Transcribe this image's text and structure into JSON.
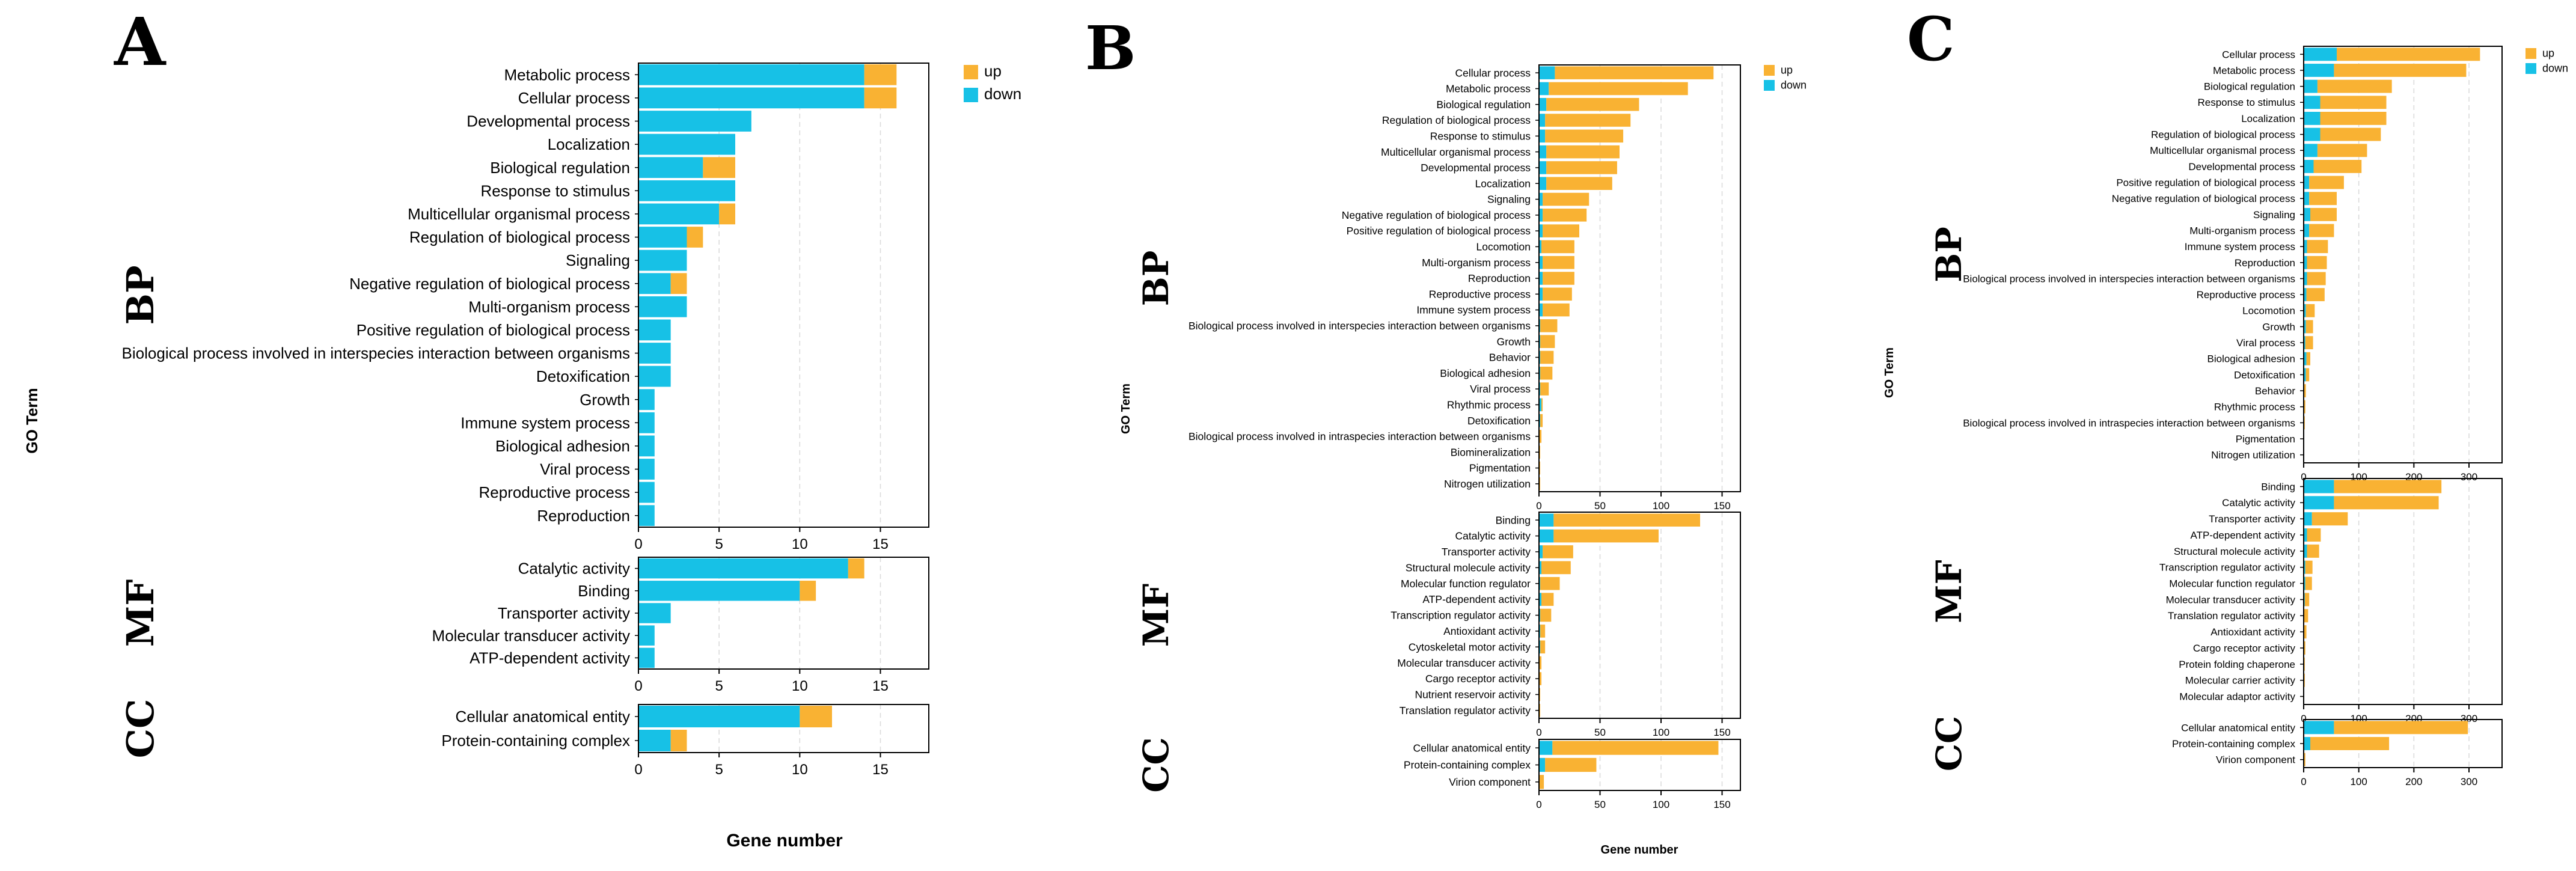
{
  "colors": {
    "up": "#F9B233",
    "down": "#17C1E6",
    "grid": "#d9d9d9",
    "axis": "#000000"
  },
  "chart_data": [
    {
      "type": "bar",
      "panel_label": "A",
      "stacked": true,
      "orientation": "horizontal",
      "y_axis_title": "GO Term",
      "x_axis_title": "Gene number",
      "legend": {
        "position": "top-right",
        "entries": [
          "up",
          "down"
        ]
      },
      "xlim": [
        0,
        18
      ],
      "x_ticks": [
        "0",
        "5",
        "10",
        "15"
      ],
      "sections": [
        {
          "name": "BP",
          "categories": [
            "Metabolic process",
            "Cellular process",
            "Developmental process",
            "Localization",
            "Biological regulation",
            "Response to stimulus",
            "Multicellular organismal process",
            "Regulation of biological process",
            "Signaling",
            "Negative regulation of biological process",
            "Multi-organism process",
            "Positive regulation of biological process",
            "Biological process involved in interspecies interaction between organisms",
            "Detoxification",
            "Growth",
            "Immune system process",
            "Biological adhesion",
            "Viral process",
            "Reproductive process",
            "Reproduction"
          ],
          "series": [
            {
              "name": "down",
              "values": [
                14,
                14,
                7,
                6,
                4,
                6,
                5,
                3,
                3,
                2,
                3,
                2,
                2,
                2,
                1,
                1,
                1,
                1,
                1,
                1
              ]
            },
            {
              "name": "up",
              "values": [
                2,
                2,
                0,
                0,
                2,
                0,
                1,
                1,
                0,
                1,
                0,
                0,
                0,
                0,
                0,
                0,
                0,
                0,
                0,
                0
              ]
            }
          ]
        },
        {
          "name": "MF",
          "categories": [
            "Catalytic activity",
            "Binding",
            "Transporter activity",
            "Molecular transducer activity",
            "ATP-dependent activity"
          ],
          "series": [
            {
              "name": "down",
              "values": [
                13,
                10,
                2,
                1,
                1
              ]
            },
            {
              "name": "up",
              "values": [
                1,
                1,
                0,
                0,
                0
              ]
            }
          ]
        },
        {
          "name": "CC",
          "categories": [
            "Cellular anatomical entity",
            "Protein-containing complex"
          ],
          "series": [
            {
              "name": "down",
              "values": [
                10,
                2
              ]
            },
            {
              "name": "up",
              "values": [
                2,
                1
              ]
            }
          ]
        }
      ]
    },
    {
      "type": "bar",
      "panel_label": "B",
      "stacked": true,
      "orientation": "horizontal",
      "y_axis_title": "GO Term",
      "x_axis_title": "Gene number",
      "legend": {
        "position": "top-right",
        "entries": [
          "up",
          "down"
        ]
      },
      "xlim": [
        0,
        165
      ],
      "x_ticks": [
        "0",
        "50",
        "100",
        "150"
      ],
      "sections": [
        {
          "name": "BP",
          "categories": [
            "Cellular process",
            "Metabolic process",
            "Biological regulation",
            "Regulation of biological process",
            "Response to stimulus",
            "Multicellular organismal process",
            "Developmental process",
            "Localization",
            "Signaling",
            "Negative regulation of biological process",
            "Positive regulation of biological process",
            "Locomotion",
            "Multi-organism process",
            "Reproduction",
            "Reproductive process",
            "Immune system process",
            "Biological process involved in interspecies interaction between organisms",
            "Growth",
            "Behavior",
            "Biological adhesion",
            "Viral process",
            "Rhythmic process",
            "Detoxification",
            "Biological process involved in intraspecies interaction between organisms",
            "Biomineralization",
            "Pigmentation",
            "Nitrogen utilization"
          ],
          "series": [
            {
              "name": "down",
              "values": [
                13,
                8,
                6,
                5,
                5,
                6,
                6,
                6,
                3,
                3,
                3,
                2,
                3,
                3,
                3,
                3,
                1,
                1,
                1,
                1,
                1,
                2,
                1,
                0,
                0,
                0,
                0
              ]
            },
            {
              "name": "up",
              "values": [
                130,
                114,
                76,
                70,
                64,
                60,
                58,
                54,
                38,
                36,
                30,
                27,
                26,
                26,
                24,
                22,
                14,
                12,
                11,
                10,
                7,
                1,
                2,
                2,
                1,
                1,
                1
              ]
            }
          ]
        },
        {
          "name": "MF",
          "categories": [
            "Binding",
            "Catalytic activity",
            "Transporter activity",
            "Structural molecule activity",
            "Molecular function regulator",
            "ATP-dependent activity",
            "Transcription regulator activity",
            "Antioxidant activity",
            "Cytoskeletal motor activity",
            "Molecular transducer activity",
            "Cargo receptor activity",
            "Nutrient reservoir activity",
            "Translation regulator activity"
          ],
          "series": [
            {
              "name": "down",
              "values": [
                12,
                12,
                3,
                2,
                1,
                2,
                1,
                1,
                1,
                0,
                0,
                0,
                0
              ]
            },
            {
              "name": "up",
              "values": [
                120,
                86,
                25,
                24,
                16,
                10,
                9,
                4,
                4,
                2,
                2,
                1,
                1
              ]
            }
          ]
        },
        {
          "name": "CC",
          "categories": [
            "Cellular anatomical entity",
            "Protein-containing complex",
            "Virion component"
          ],
          "series": [
            {
              "name": "down",
              "values": [
                11,
                5,
                0
              ]
            },
            {
              "name": "up",
              "values": [
                136,
                42,
                4
              ]
            }
          ]
        }
      ]
    },
    {
      "type": "bar",
      "panel_label": "C",
      "stacked": true,
      "orientation": "horizontal",
      "y_axis_title": "GO Term",
      "x_axis_title": "",
      "legend": {
        "position": "top-right",
        "entries": [
          "up",
          "down"
        ]
      },
      "xlim": [
        0,
        360
      ],
      "x_ticks": [
        "0",
        "100",
        "200",
        "300"
      ],
      "sections": [
        {
          "name": "BP",
          "categories": [
            "Cellular process",
            "Metabolic process",
            "Biological regulation",
            "Response to stimulus",
            "Localization",
            "Regulation of biological process",
            "Multicellular organismal process",
            "Developmental process",
            "Positive regulation of biological process",
            "Negative regulation of biological process",
            "Signaling",
            "Multi-organism process",
            "Immune system process",
            "Reproduction",
            "Biological process involved in interspecies interaction between organisms",
            "Reproductive process",
            "Locomotion",
            "Growth",
            "Viral process",
            "Biological adhesion",
            "Detoxification",
            "Behavior",
            "Rhythmic process",
            "Biological process involved in intraspecies interaction between organisms",
            "Pigmentation",
            "Nitrogen utilization"
          ],
          "series": [
            {
              "name": "down",
              "values": [
                60,
                55,
                25,
                30,
                30,
                30,
                25,
                18,
                10,
                10,
                12,
                10,
                6,
                6,
                6,
                5,
                4,
                4,
                3,
                5,
                4,
                1,
                1,
                0,
                0,
                0
              ]
            },
            {
              "name": "up",
              "values": [
                260,
                240,
                135,
                120,
                120,
                110,
                90,
                87,
                63,
                50,
                48,
                45,
                38,
                36,
                34,
                33,
                16,
                13,
                14,
                7,
                6,
                3,
                2,
                2,
                1,
                1
              ]
            }
          ]
        },
        {
          "name": "MF",
          "categories": [
            "Binding",
            "Catalytic activity",
            "Transporter activity",
            "ATP-dependent activity",
            "Structural molecule activity",
            "Transcription regulator activity",
            "Molecular function regulator",
            "Molecular transducer activity",
            "Translation regulator activity",
            "Antioxidant activity",
            "Cargo receptor activity",
            "Protein folding chaperone",
            "Molecular carrier activity",
            "Molecular adaptor activity"
          ],
          "series": [
            {
              "name": "down",
              "values": [
                55,
                55,
                15,
                6,
                6,
                3,
                3,
                2,
                1,
                1,
                0,
                0,
                0,
                0
              ]
            },
            {
              "name": "up",
              "values": [
                195,
                190,
                65,
                25,
                22,
                13,
                12,
                8,
                7,
                4,
                3,
                2,
                2,
                1
              ]
            }
          ]
        },
        {
          "name": "CC",
          "categories": [
            "Cellular anatomical entity",
            "Protein-containing complex",
            "Virion component"
          ],
          "series": [
            {
              "name": "down",
              "values": [
                55,
                12,
                0
              ]
            },
            {
              "name": "up",
              "values": [
                243,
                143,
                3
              ]
            }
          ]
        }
      ]
    }
  ]
}
